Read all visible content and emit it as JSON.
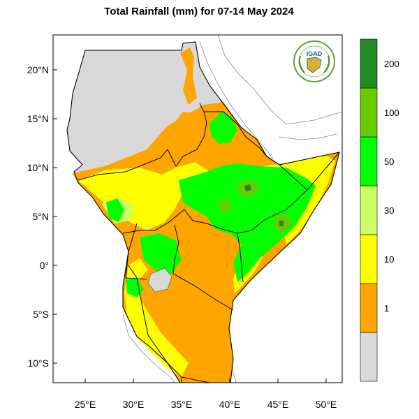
{
  "title": "Total Rainfall (mm) for 07-14 May 2024",
  "logo": {
    "text": "IGAD",
    "colors": {
      "ring": "#2e7d32",
      "inner": "#c0392b",
      "text": "#1f5fa6"
    }
  },
  "lat_labels": [
    {
      "lat": 20,
      "label": "20°N"
    },
    {
      "lat": 15,
      "label": "15°N"
    },
    {
      "lat": 10,
      "label": "10°N"
    },
    {
      "lat": 5,
      "label": "5°N"
    },
    {
      "lat": 0,
      "label": "0°"
    },
    {
      "lat": -5,
      "label": "5°S"
    },
    {
      "lat": -10,
      "label": "10°S"
    }
  ],
  "lon_labels": [
    {
      "lon": 25,
      "label": "25°E"
    },
    {
      "lon": 30,
      "label": "30°E"
    },
    {
      "lon": 35,
      "label": "35°E"
    },
    {
      "lon": 40,
      "label": "40°E"
    },
    {
      "lon": 45,
      "label": "45°E"
    },
    {
      "lon": 50,
      "label": "50°E"
    }
  ],
  "legend": {
    "classes": [
      {
        "color": "#d9d9d9",
        "label": "1"
      },
      {
        "color": "#ffa500",
        "label": "10"
      },
      {
        "color": "#ffff00",
        "label": "30"
      },
      {
        "color": "#ccff66",
        "label": "50"
      },
      {
        "color": "#00ff00",
        "label": "100"
      },
      {
        "color": "#66cc00",
        "label": "200"
      },
      {
        "color": "#228b22",
        "label": ""
      }
    ]
  },
  "map_colors": {
    "no_rain": "#d9d9d9",
    "r1_10": "#ffa500",
    "r10_30": "#ffff00",
    "r30_50": "#ccff66",
    "r50_100": "#00ff00",
    "r100_200": "#66cc00",
    "r200_plus": "#2f7d32",
    "border": "#000000",
    "coast": "#777777"
  }
}
